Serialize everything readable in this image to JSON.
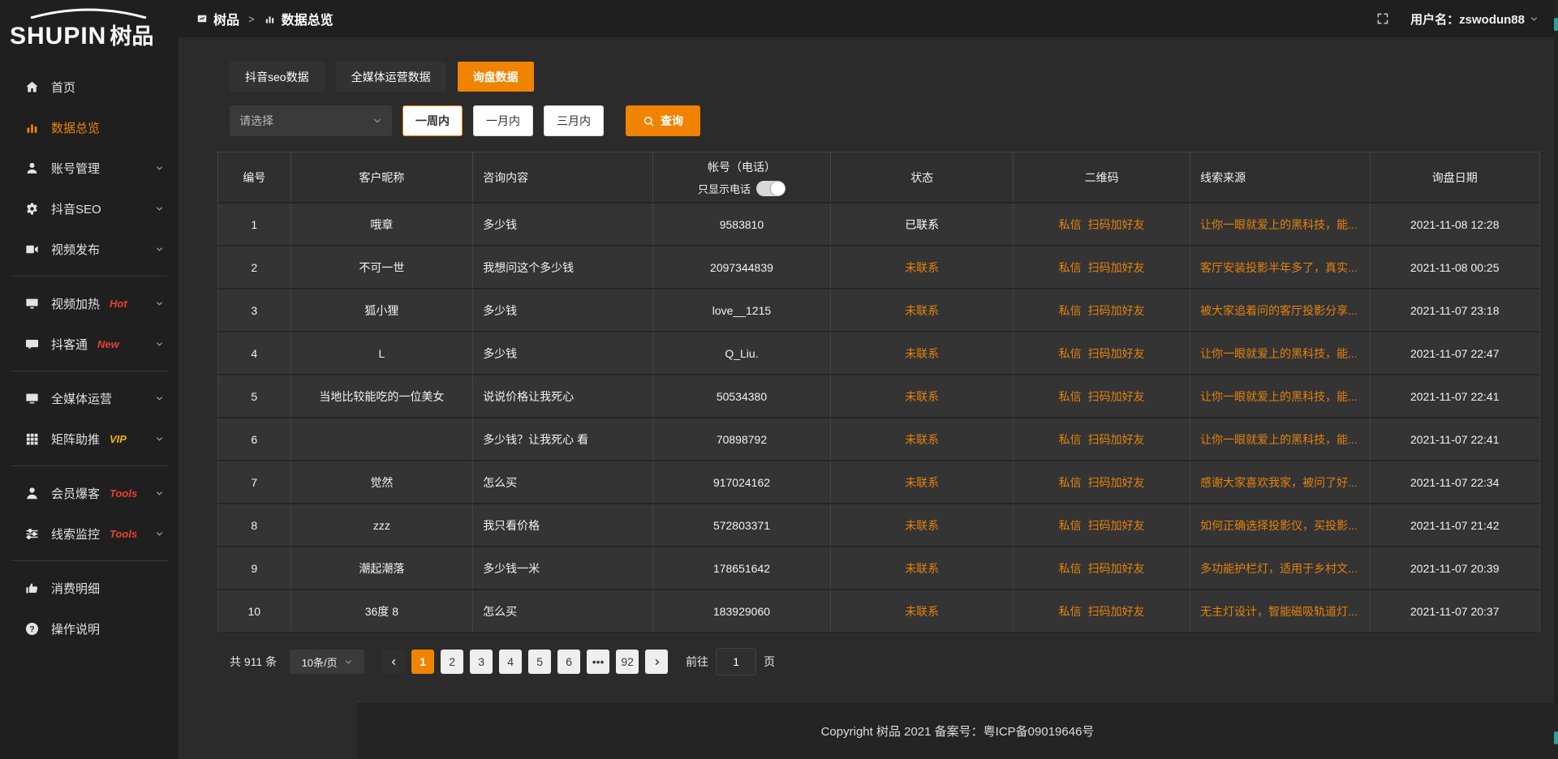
{
  "accent": "#f08300",
  "link_color": "#e5820d",
  "sidebar": {
    "logo": {
      "en": "SHUPIN",
      "zh": "树品"
    },
    "items": [
      {
        "name": "home",
        "icon": "home-icon",
        "label": "首页",
        "active": false,
        "expandable": false
      },
      {
        "name": "data-overview",
        "icon": "bar-chart-icon",
        "label": "数据总览",
        "active": true,
        "expandable": false
      },
      {
        "name": "account-management",
        "icon": "user-icon",
        "label": "账号管理",
        "expandable": true
      },
      {
        "name": "douyin-seo",
        "icon": "gear-icon",
        "label": "抖音SEO",
        "expandable": true
      },
      {
        "name": "video-publish",
        "icon": "video-icon",
        "label": "视频发布",
        "expandable": true,
        "divider_after": true
      },
      {
        "name": "video-heating",
        "icon": "heat-icon",
        "label": "视频加热",
        "badge": "Hot",
        "badge_color": "#e8402f",
        "expandable": true
      },
      {
        "name": "douketong",
        "icon": "chat-icon",
        "label": "抖客通",
        "badge": "New",
        "badge_color": "#e8402f",
        "expandable": true,
        "divider_after": true
      },
      {
        "name": "omnimedia-operation",
        "icon": "monitor-icon",
        "label": "全媒体运营",
        "expandable": true
      },
      {
        "name": "matrix-boost",
        "icon": "grid-icon",
        "label": "矩阵助推",
        "badge": "VIP",
        "badge_color": "#efb402",
        "expandable": true,
        "divider_after": true
      },
      {
        "name": "member-baoke",
        "icon": "person-icon",
        "label": "会员爆客",
        "badge": "Tools",
        "badge_color": "#e8402f",
        "expandable": true
      },
      {
        "name": "clue-monitoring",
        "icon": "sliders-icon",
        "label": "线索监控",
        "badge": "Tools",
        "badge_color": "#e8402f",
        "expandable": true,
        "divider_after": true
      },
      {
        "name": "consumption-details",
        "icon": "thumb-icon",
        "label": "消费明细",
        "expandable": false
      },
      {
        "name": "operation-guide",
        "icon": "help-icon",
        "label": "操作说明",
        "expandable": false
      }
    ]
  },
  "header": {
    "breadcrumb": {
      "app": "树品",
      "separator": ">",
      "page": "数据总览"
    },
    "user_label": "用户名：zswodun88"
  },
  "tabs": [
    {
      "label": "抖音seo数据",
      "active": false
    },
    {
      "label": "全媒体运营数据",
      "active": false
    },
    {
      "label": "询盘数据",
      "active": true
    }
  ],
  "filters": {
    "select_placeholder": "请选择",
    "ranges": [
      {
        "label": "一周内",
        "active": true
      },
      {
        "label": "一月内",
        "active": false
      },
      {
        "label": "三月内",
        "active": false
      }
    ],
    "search_label": "查询"
  },
  "table": {
    "columns": [
      {
        "key": "no",
        "label": "编号",
        "w": "5.5%",
        "align": "center"
      },
      {
        "key": "nickname",
        "label": "客户昵称",
        "w": "13.8%",
        "align": "center"
      },
      {
        "key": "content",
        "label": "咨询内容",
        "w": "13.6%",
        "align": "left"
      },
      {
        "key": "account",
        "label": "帐号（电话）",
        "w": "13.5%",
        "align": "center",
        "sub_label": "只显示电话",
        "toggle": true
      },
      {
        "key": "status",
        "label": "状态",
        "w": "13.8%",
        "align": "center"
      },
      {
        "key": "qr",
        "label": "二维码",
        "w": "13.4%",
        "align": "center"
      },
      {
        "key": "source",
        "label": "线索来源",
        "w": "13.6%",
        "align": "left"
      },
      {
        "key": "date",
        "label": "询盘日期",
        "w": "12.8%",
        "align": "center"
      }
    ],
    "rows": [
      {
        "no": "1",
        "nickname": "哦章",
        "content": "多少钱",
        "account": "9583810",
        "status": "已联系",
        "status_state": "contacted",
        "qr_links": [
          "私信",
          "扫码加好友"
        ],
        "source": "让你一眼就爱上的黑科技，能...",
        "date": "2021-11-08 12:28"
      },
      {
        "no": "2",
        "nickname": "不可一世",
        "content": "我想问这个多少钱",
        "account": "2097344839",
        "status": "未联系",
        "status_state": "uncontacted",
        "qr_links": [
          "私信",
          "扫码加好友"
        ],
        "source": "客厅安装投影半年多了，真实...",
        "date": "2021-11-08 00:25"
      },
      {
        "no": "3",
        "nickname": "狐小狸",
        "content": "多少钱",
        "account": "love__1215",
        "status": "未联系",
        "status_state": "uncontacted",
        "qr_links": [
          "私信",
          "扫码加好友"
        ],
        "source": "被大家追着问的客厅投影分享...",
        "date": "2021-11-07 23:18"
      },
      {
        "no": "4",
        "nickname": "L",
        "content": "多少钱",
        "account": "Q_Liu.",
        "status": "未联系",
        "status_state": "uncontacted",
        "qr_links": [
          "私信",
          "扫码加好友"
        ],
        "source": "让你一眼就爱上的黑科技，能...",
        "date": "2021-11-07 22:47"
      },
      {
        "no": "5",
        "nickname": "当地比较能吃的一位美女",
        "content": "说说价格让我死心",
        "account": "50534380",
        "status": "未联系",
        "status_state": "uncontacted",
        "qr_links": [
          "私信",
          "扫码加好友"
        ],
        "source": "让你一眼就爱上的黑科技，能...",
        "date": "2021-11-07 22:41"
      },
      {
        "no": "6",
        "nickname": "",
        "content": "多少钱？让我死心 看",
        "account": "70898792",
        "status": "未联系",
        "status_state": "uncontacted",
        "qr_links": [
          "私信",
          "扫码加好友"
        ],
        "source": "让你一眼就爱上的黑科技，能...",
        "date": "2021-11-07 22:41"
      },
      {
        "no": "7",
        "nickname": "觉然",
        "content": "怎么买",
        "account": "917024162",
        "status": "未联系",
        "status_state": "uncontacted",
        "qr_links": [
          "私信",
          "扫码加好友"
        ],
        "source": "感谢大家喜欢我家，被问了好...",
        "date": "2021-11-07 22:34"
      },
      {
        "no": "8",
        "nickname": "zzz",
        "content": "我只看价格",
        "account": "572803371",
        "status": "未联系",
        "status_state": "uncontacted",
        "qr_links": [
          "私信",
          "扫码加好友"
        ],
        "source": "如何正确选择投影仪，买投影...",
        "date": "2021-11-07 21:42"
      },
      {
        "no": "9",
        "nickname": "潮起潮落",
        "content": "多少钱一米",
        "account": "178651642",
        "status": "未联系",
        "status_state": "uncontacted",
        "qr_links": [
          "私信",
          "扫码加好友"
        ],
        "source": "多功能护栏灯，适用于乡村文...",
        "date": "2021-11-07 20:39"
      },
      {
        "no": "10",
        "nickname": "36度 8",
        "content": "怎么买",
        "account": "183929060",
        "status": "未联系",
        "status_state": "uncontacted",
        "qr_links": [
          "私信",
          "扫码加好友"
        ],
        "source": "无主灯设计，智能磁吸轨道灯...",
        "date": "2021-11-07 20:37"
      }
    ]
  },
  "pagination": {
    "total_label": "共 911 条",
    "page_size_label": "10条/页",
    "pages": [
      "1",
      "2",
      "3",
      "4",
      "5",
      "6",
      "•••",
      "92"
    ],
    "active_page": "1",
    "goto_label": "前往",
    "goto_value": "1",
    "unit_label": "页"
  },
  "footer": {
    "copyright": "Copyright 树品 2021 备案号：粤ICP备09019646号"
  }
}
